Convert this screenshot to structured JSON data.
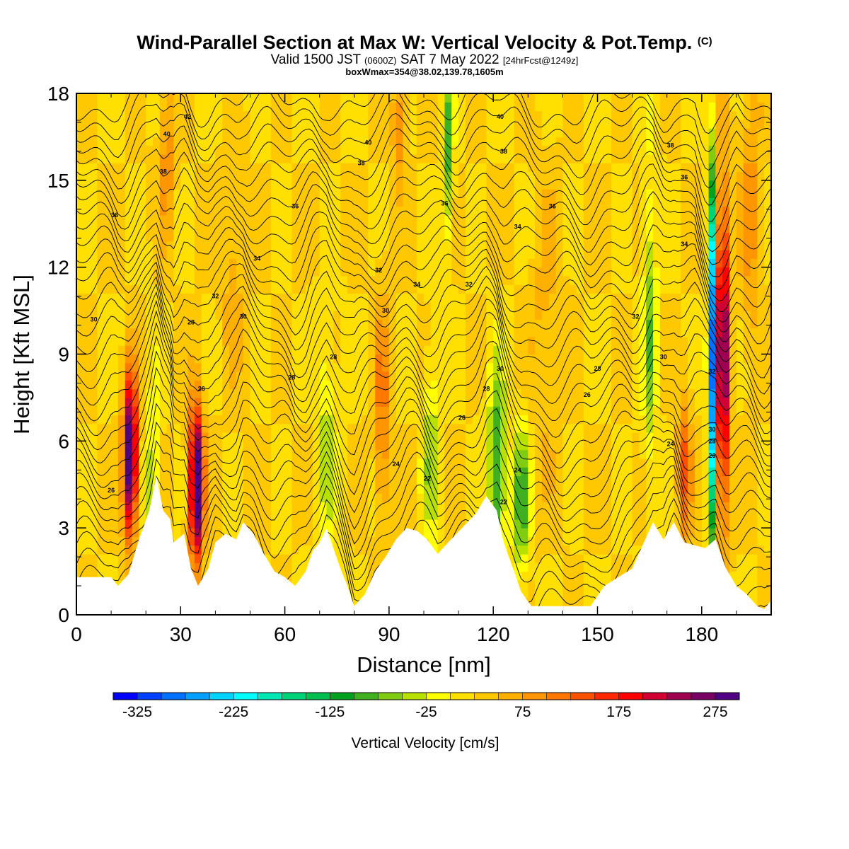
{
  "title": {
    "line1": "Wind-Parallel Section at Max W: Vertical Velocity & Pot.Temp.",
    "line1_tag": "(C)",
    "line2_a": "Valid 1500 JST ",
    "line2_b": "(0600Z)",
    "line2_c": " SAT 7 May 2022 ",
    "line2_d": "[24hrFcst@1249z]",
    "line3": "boxWmax=354@38.02,139.78,1605m"
  },
  "chart_data": {
    "type": "heatmap",
    "xlabel": "Distance [nm]",
    "ylabel": "Height [Kft MSL]",
    "xlim": [
      0,
      200
    ],
    "ylim": [
      0,
      18
    ],
    "x_ticks": [
      0,
      30,
      60,
      90,
      120,
      150,
      180
    ],
    "y_ticks": [
      0,
      3,
      6,
      9,
      12,
      15,
      18
    ],
    "colorbar": {
      "title": "Vertical Velocity [cm/s]",
      "labels": [
        -325,
        -225,
        -125,
        -25,
        75,
        175,
        275
      ],
      "min": -350,
      "max": 300,
      "step": 25,
      "colors": [
        "#0000ff",
        "#0040ff",
        "#0070ff",
        "#00a0ff",
        "#00d4ff",
        "#00ffff",
        "#00e6b4",
        "#00d27a",
        "#00be50",
        "#00a020",
        "#40b020",
        "#80cc10",
        "#b8e000",
        "#ffff00",
        "#ffe000",
        "#ffc800",
        "#ffb000",
        "#ff9600",
        "#ff7800",
        "#ff5000",
        "#ff2800",
        "#ff0000",
        "#d20032",
        "#a00050",
        "#780064",
        "#500082"
      ]
    },
    "terrain_profile_kft": [
      [
        0,
        1.3
      ],
      [
        10,
        1.3
      ],
      [
        12,
        1.0
      ],
      [
        15,
        1.4
      ],
      [
        18,
        2.6
      ],
      [
        21,
        3.6
      ],
      [
        23,
        4.8
      ],
      [
        25,
        3.6
      ],
      [
        27,
        3.3
      ],
      [
        28,
        2.5
      ],
      [
        31,
        2.8
      ],
      [
        33,
        1.6
      ],
      [
        35,
        1.0
      ],
      [
        38,
        1.6
      ],
      [
        40,
        2.5
      ],
      [
        43,
        2.8
      ],
      [
        46,
        2.6
      ],
      [
        48,
        3.2
      ],
      [
        51,
        2.8
      ],
      [
        54,
        2.1
      ],
      [
        57,
        1.5
      ],
      [
        60,
        1.3
      ],
      [
        63,
        1.0
      ],
      [
        66,
        1.5
      ],
      [
        68,
        2.2
      ],
      [
        70,
        2.5
      ],
      [
        72,
        3.0
      ],
      [
        74,
        2.3
      ],
      [
        76,
        1.6
      ],
      [
        78,
        1.0
      ],
      [
        80,
        0.3
      ],
      [
        83,
        0.7
      ],
      [
        86,
        1.5
      ],
      [
        89,
        2.0
      ],
      [
        92,
        2.6
      ],
      [
        95,
        3.0
      ],
      [
        98,
        2.9
      ],
      [
        101,
        2.6
      ],
      [
        104,
        2.1
      ],
      [
        107,
        2.5
      ],
      [
        111,
        3.0
      ],
      [
        115,
        3.5
      ],
      [
        118,
        4.1
      ],
      [
        121,
        3.6
      ],
      [
        123,
        2.5
      ],
      [
        126,
        1.5
      ],
      [
        128,
        0.8
      ],
      [
        131,
        0.3
      ],
      [
        140,
        0.3
      ],
      [
        148,
        0.3
      ],
      [
        152,
        1.0
      ],
      [
        156,
        1.3
      ],
      [
        160,
        1.6
      ],
      [
        163,
        2.4
      ],
      [
        166,
        3.2
      ],
      [
        169,
        2.6
      ],
      [
        172,
        3.2
      ],
      [
        175,
        2.5
      ],
      [
        178,
        2.4
      ],
      [
        181,
        2.3
      ],
      [
        184,
        2.6
      ],
      [
        187,
        1.6
      ],
      [
        190,
        1.0
      ],
      [
        193,
        0.7
      ],
      [
        196,
        0.3
      ],
      [
        198,
        0.2
      ],
      [
        200,
        0.5
      ]
    ],
    "w_features": [
      {
        "x": 15.5,
        "z": 5.5,
        "amp": 320,
        "wx": 2.0,
        "wz": 2.6
      },
      {
        "x": 34.5,
        "z": 4.5,
        "amp": 330,
        "wx": 2.0,
        "wz": 2.6
      },
      {
        "x": 186,
        "z": 9.0,
        "amp": 280,
        "wx": 1.8,
        "wz": 5.5
      },
      {
        "x": 183,
        "z": 9.0,
        "amp": -340,
        "wx": 1.2,
        "wz": 6.0
      },
      {
        "x": 22,
        "z": 4.0,
        "amp": -80,
        "wx": 2.0,
        "wz": 4.0
      },
      {
        "x": 72,
        "z": 6.0,
        "amp": -60,
        "wx": 3.0,
        "wz": 4.0
      },
      {
        "x": 102,
        "z": 5.5,
        "amp": -70,
        "wx": 2.5,
        "wz": 3.5
      },
      {
        "x": 88,
        "z": 7.0,
        "amp": 90,
        "wx": 2.0,
        "wz": 4.0
      },
      {
        "x": 107,
        "z": 16.0,
        "amp": -110,
        "wx": 1.5,
        "wz": 3.0
      },
      {
        "x": 121,
        "z": 5.0,
        "amp": -140,
        "wx": 2.5,
        "wz": 3.5
      },
      {
        "x": 128,
        "z": 4.0,
        "amp": -120,
        "wx": 2.5,
        "wz": 2.5
      },
      {
        "x": 165,
        "z": 10.0,
        "amp": -90,
        "wx": 2.0,
        "wz": 5.0
      },
      {
        "x": 175,
        "z": 5.0,
        "amp": 110,
        "wx": 2.0,
        "wz": 2.5
      },
      {
        "x": 194,
        "z": 14.0,
        "amp": 60,
        "wx": 3.0,
        "wz": 5.0
      },
      {
        "x": 26,
        "z": 16.0,
        "amp": 70,
        "wx": 2.0,
        "wz": 3.0
      },
      {
        "x": 93,
        "z": 17.0,
        "amp": 80,
        "wx": 2.0,
        "wz": 2.0
      },
      {
        "x": 45,
        "z": 12.0,
        "amp": 40,
        "wx": 3.0,
        "wz": 4.0
      },
      {
        "x": 135,
        "z": 10.0,
        "amp": 35,
        "wx": 4.0,
        "wz": 5.0
      }
    ],
    "theta_labels": [
      {
        "x": 10,
        "z": 4.3,
        "text": "26"
      },
      {
        "x": 5,
        "z": 10.2,
        "text": "30"
      },
      {
        "x": 11,
        "z": 13.8,
        "text": "36"
      },
      {
        "x": 25,
        "z": 15.3,
        "text": "38"
      },
      {
        "x": 26,
        "z": 16.6,
        "text": "40"
      },
      {
        "x": 32,
        "z": 17.2,
        "text": "42"
      },
      {
        "x": 33,
        "z": 10.1,
        "text": "28"
      },
      {
        "x": 36,
        "z": 7.8,
        "text": "26"
      },
      {
        "x": 40,
        "z": 11.0,
        "text": "32"
      },
      {
        "x": 48,
        "z": 10.3,
        "text": "30"
      },
      {
        "x": 52,
        "z": 12.3,
        "text": "34"
      },
      {
        "x": 62,
        "z": 8.2,
        "text": "28"
      },
      {
        "x": 63,
        "z": 14.1,
        "text": "36"
      },
      {
        "x": 74,
        "z": 8.9,
        "text": "28"
      },
      {
        "x": 82,
        "z": 15.6,
        "text": "38"
      },
      {
        "x": 84,
        "z": 16.3,
        "text": "40"
      },
      {
        "x": 87,
        "z": 11.9,
        "text": "32"
      },
      {
        "x": 89,
        "z": 10.5,
        "text": "30"
      },
      {
        "x": 98,
        "z": 11.4,
        "text": "34"
      },
      {
        "x": 101,
        "z": 4.7,
        "text": "22"
      },
      {
        "x": 92,
        "z": 5.2,
        "text": "24"
      },
      {
        "x": 106,
        "z": 14.2,
        "text": "36"
      },
      {
        "x": 111,
        "z": 6.8,
        "text": "26"
      },
      {
        "x": 113,
        "z": 11.4,
        "text": "32"
      },
      {
        "x": 118,
        "z": 7.8,
        "text": "28"
      },
      {
        "x": 122,
        "z": 8.5,
        "text": "30"
      },
      {
        "x": 123,
        "z": 3.9,
        "text": "22"
      },
      {
        "x": 123,
        "z": 16.0,
        "text": "38"
      },
      {
        "x": 122,
        "z": 17.2,
        "text": "40"
      },
      {
        "x": 127,
        "z": 5.0,
        "text": "24"
      },
      {
        "x": 127,
        "z": 13.4,
        "text": "34"
      },
      {
        "x": 137,
        "z": 14.1,
        "text": "36"
      },
      {
        "x": 147,
        "z": 7.6,
        "text": "26"
      },
      {
        "x": 150,
        "z": 8.5,
        "text": "28"
      },
      {
        "x": 161,
        "z": 10.3,
        "text": "32"
      },
      {
        "x": 169,
        "z": 8.9,
        "text": "30"
      },
      {
        "x": 171,
        "z": 5.9,
        "text": "24"
      },
      {
        "x": 171,
        "z": 16.2,
        "text": "38"
      },
      {
        "x": 175,
        "z": 15.1,
        "text": "36"
      },
      {
        "x": 175,
        "z": 12.8,
        "text": "34"
      },
      {
        "x": 183,
        "z": 8.4,
        "text": "32"
      },
      {
        "x": 183,
        "z": 6.4,
        "text": "30"
      },
      {
        "x": 183,
        "z": 6.0,
        "text": "28"
      },
      {
        "x": 183,
        "z": 5.5,
        "text": "26"
      }
    ]
  }
}
